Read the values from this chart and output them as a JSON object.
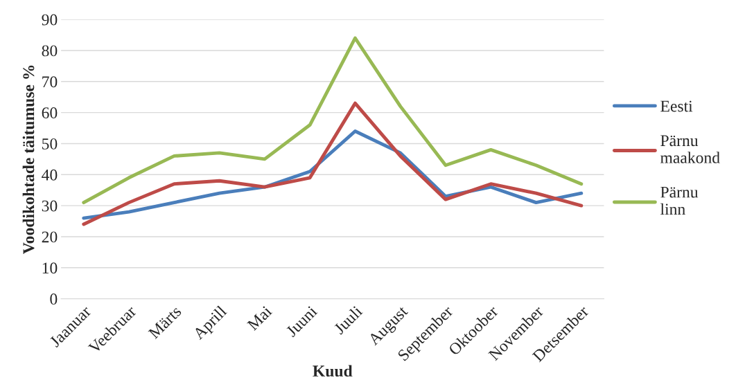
{
  "chart_data": {
    "type": "line",
    "xlabel": "Kuud",
    "ylabel": "Voodikohtade täitumuse %",
    "categories": [
      "Jaanuar",
      "Veebruar",
      "Märts",
      "Aprill",
      "Mai",
      "Juuni",
      "Juuli",
      "August",
      "September",
      "Oktoober",
      "November",
      "Detsember"
    ],
    "series": [
      {
        "name": "Eesti",
        "color": "#4a7ebb",
        "values": [
          26,
          28,
          31,
          34,
          36,
          41,
          54,
          47,
          33,
          36,
          31,
          34
        ]
      },
      {
        "name": "Pärnu\nmaakond",
        "color": "#be4b48",
        "values": [
          24,
          31,
          37,
          38,
          36,
          39,
          63,
          46,
          32,
          37,
          34,
          30
        ]
      },
      {
        "name": "Pärnu\nlinn",
        "color": "#98b954",
        "values": [
          31,
          39,
          46,
          47,
          45,
          56,
          84,
          62,
          43,
          48,
          43,
          37
        ]
      }
    ],
    "ylim": [
      0,
      90
    ],
    "yticks": [
      0,
      10,
      20,
      30,
      40,
      50,
      60,
      70,
      80,
      90
    ],
    "grid": "y",
    "legend": "right",
    "marker": "none",
    "line_style": "solid"
  }
}
